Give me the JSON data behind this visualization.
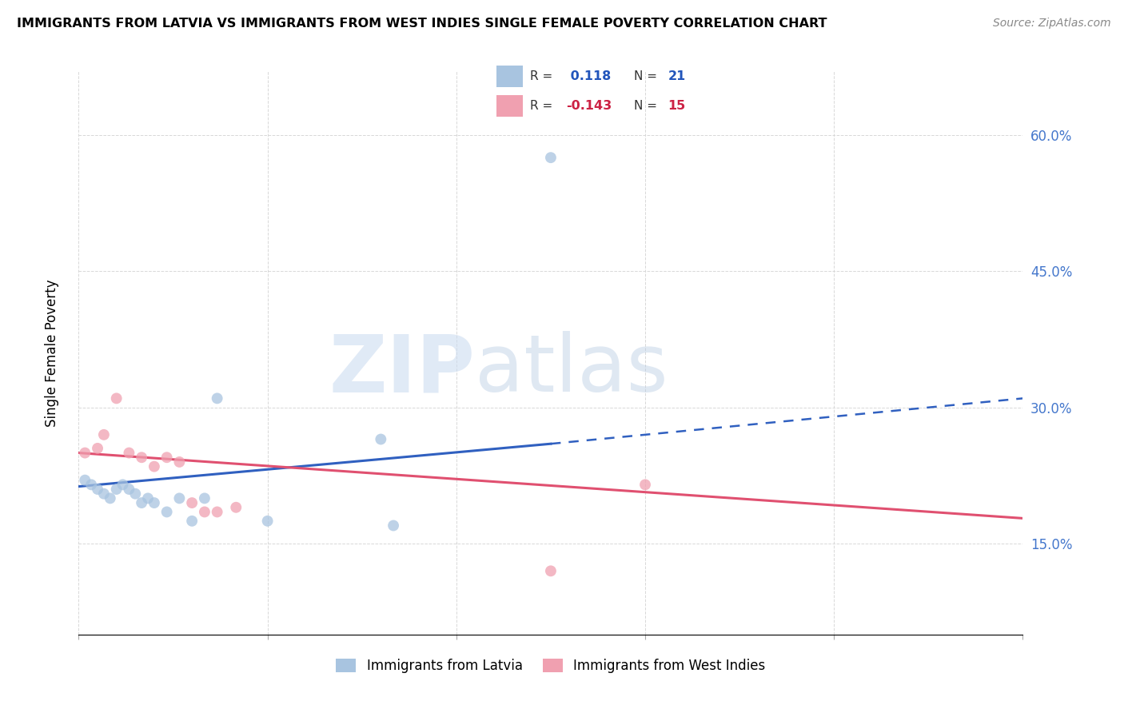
{
  "title": "IMMIGRANTS FROM LATVIA VS IMMIGRANTS FROM WEST INDIES SINGLE FEMALE POVERTY CORRELATION CHART",
  "source": "Source: ZipAtlas.com",
  "ylabel": "Single Female Poverty",
  "xlim": [
    0.0,
    0.15
  ],
  "ylim": [
    0.05,
    0.67
  ],
  "yticks": [
    0.15,
    0.3,
    0.45,
    0.6
  ],
  "xticks": [
    0.0,
    0.03,
    0.06,
    0.09,
    0.12,
    0.15
  ],
  "latvia_R": 0.118,
  "latvia_N": 21,
  "westindies_R": -0.143,
  "westindies_N": 15,
  "latvia_color": "#a8c4e0",
  "westindies_color": "#f0a0b0",
  "latvia_line_color": "#3060c0",
  "westindies_line_color": "#e05070",
  "latvia_x": [
    0.001,
    0.002,
    0.003,
    0.004,
    0.005,
    0.006,
    0.007,
    0.008,
    0.009,
    0.01,
    0.011,
    0.012,
    0.014,
    0.016,
    0.018,
    0.02,
    0.022,
    0.03,
    0.048,
    0.05,
    0.075
  ],
  "latvia_y": [
    0.22,
    0.215,
    0.21,
    0.205,
    0.2,
    0.21,
    0.215,
    0.21,
    0.205,
    0.195,
    0.2,
    0.195,
    0.185,
    0.2,
    0.175,
    0.2,
    0.31,
    0.175,
    0.265,
    0.17,
    0.575
  ],
  "westindies_x": [
    0.001,
    0.003,
    0.004,
    0.006,
    0.008,
    0.01,
    0.012,
    0.014,
    0.016,
    0.018,
    0.02,
    0.022,
    0.025,
    0.075,
    0.09
  ],
  "westindies_y": [
    0.25,
    0.255,
    0.27,
    0.31,
    0.25,
    0.245,
    0.235,
    0.245,
    0.24,
    0.195,
    0.185,
    0.185,
    0.19,
    0.12,
    0.215
  ],
  "latvia_line_x0": 0.0,
  "latvia_line_x1": 0.075,
  "latvia_line_x_ext": 0.15,
  "latvia_line_y0": 0.213,
  "latvia_line_y1": 0.26,
  "latvia_line_y_ext": 0.31,
  "westindies_line_x0": 0.0,
  "westindies_line_x1": 0.15,
  "westindies_line_y0": 0.25,
  "westindies_line_y1": 0.178,
  "background_color": "#ffffff",
  "grid_color": "#d8d8d8"
}
